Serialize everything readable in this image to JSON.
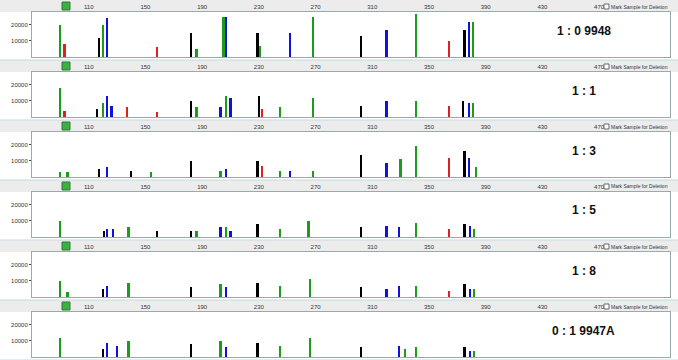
{
  "chart_data": [
    {
      "type": "bar",
      "title": "1 : 0 9948",
      "checkbox_label": "Mark Sample for Deletion",
      "xlim": [
        70,
        520
      ],
      "xticks": [
        110,
        150,
        190,
        230,
        270,
        310,
        350,
        390,
        430,
        470
      ],
      "ylim": [
        0,
        28000
      ],
      "yticks": [
        10000,
        20000
      ],
      "grid": false,
      "series": [
        {
          "color": "#1a9e1a",
          "x": [
            90,
            120,
            186,
            205,
            231,
            268,
            341,
            381
          ],
          "values": [
            20000,
            20000,
            5000,
            25000,
            7000,
            25000,
            27000,
            22000
          ]
        },
        {
          "color": "#1010e0",
          "x": [
            123,
            207,
            252,
            320,
            378
          ],
          "values": [
            24000,
            25000,
            15000,
            17000,
            22000
          ]
        },
        {
          "color": "#000000",
          "x": [
            117,
            182,
            229,
            302,
            375
          ],
          "values": [
            12000,
            15000,
            15000,
            13000,
            17000
          ]
        },
        {
          "color": "#e02020",
          "x": [
            93,
            158,
            364
          ],
          "values": [
            8000,
            6000,
            10000
          ]
        }
      ]
    },
    {
      "type": "bar",
      "title": "1 : 1",
      "checkbox_label": "Mark Sample for Deletion",
      "xlim": [
        70,
        520
      ],
      "xticks": [
        110,
        150,
        190,
        230,
        270,
        310,
        350,
        390,
        430,
        470
      ],
      "ylim": [
        0,
        28000
      ],
      "yticks": [
        10000,
        20000
      ],
      "grid": false,
      "series": [
        {
          "color": "#1a9e1a",
          "x": [
            90,
            120,
            186,
            207,
            245,
            268,
            341,
            381
          ],
          "values": [
            18000,
            9000,
            6000,
            13000,
            6000,
            12000,
            10000,
            9000
          ]
        },
        {
          "color": "#1010e0",
          "x": [
            123,
            126,
            203,
            210,
            320,
            378
          ],
          "values": [
            13000,
            7000,
            6000,
            12000,
            10000,
            9000
          ]
        },
        {
          "color": "#000000",
          "x": [
            116,
            182,
            230,
            302,
            374
          ],
          "values": [
            5000,
            10000,
            13000,
            7000,
            10000
          ]
        },
        {
          "color": "#e02020",
          "x": [
            93,
            137,
            158,
            232,
            364
          ],
          "values": [
            4000,
            6000,
            3000,
            5000,
            7000
          ]
        }
      ]
    },
    {
      "type": "bar",
      "title": "1 : 3",
      "checkbox_label": "Mark Sample for Deletion",
      "xlim": [
        70,
        520
      ],
      "xticks": [
        110,
        150,
        190,
        230,
        270,
        310,
        350,
        390,
        430,
        470
      ],
      "ylim": [
        0,
        28000
      ],
      "yticks": [
        10000,
        20000
      ],
      "grid": false,
      "series": [
        {
          "color": "#1a9e1a",
          "x": [
            90,
            95,
            154,
            203,
            245,
            268,
            330,
            341,
            383
          ],
          "values": [
            3000,
            3000,
            3000,
            4000,
            4000,
            4000,
            11000,
            19000,
            6000
          ]
        },
        {
          "color": "#1010e0",
          "x": [
            123,
            207,
            252,
            320,
            378
          ],
          "values": [
            6000,
            5000,
            4000,
            9000,
            12000
          ]
        },
        {
          "color": "#000000",
          "x": [
            117,
            140,
            182,
            229,
            302,
            375
          ],
          "values": [
            5000,
            4000,
            10000,
            10000,
            14000,
            16000
          ]
        },
        {
          "color": "#e02020",
          "x": [
            232,
            364
          ],
          "values": [
            7000,
            12000
          ]
        }
      ]
    },
    {
      "type": "bar",
      "title": "1 : 5",
      "checkbox_label": "Mark Sample for Deletion",
      "xlim": [
        70,
        520
      ],
      "xticks": [
        110,
        150,
        190,
        230,
        270,
        310,
        350,
        390,
        430,
        470
      ],
      "ylim": [
        0,
        28000
      ],
      "yticks": [
        10000,
        20000
      ],
      "grid": false,
      "series": [
        {
          "color": "#1a9e1a",
          "x": [
            90,
            138,
            186,
            207,
            245,
            265,
            341,
            382
          ],
          "values": [
            10000,
            6000,
            4000,
            6000,
            5000,
            10000,
            9000,
            5000
          ]
        },
        {
          "color": "#1010e0",
          "x": [
            123,
            127,
            203,
            210,
            320,
            329,
            379
          ],
          "values": [
            5000,
            5000,
            6000,
            4000,
            7000,
            6000,
            7000
          ]
        },
        {
          "color": "#000000",
          "x": [
            121,
            158,
            182,
            229,
            302,
            375
          ],
          "values": [
            4000,
            4000,
            4000,
            8000,
            6000,
            8000
          ]
        },
        {
          "color": "#e02020",
          "x": [
            364
          ],
          "values": [
            5000
          ]
        }
      ]
    },
    {
      "type": "bar",
      "title": "1 : 8",
      "checkbox_label": "Mark Sample for Deletion",
      "xlim": [
        70,
        520
      ],
      "xticks": [
        110,
        150,
        190,
        230,
        270,
        310,
        350,
        390,
        430,
        470
      ],
      "ylim": [
        0,
        28000
      ],
      "yticks": [
        10000,
        20000
      ],
      "grid": false,
      "series": [
        {
          "color": "#1a9e1a",
          "x": [
            90,
            95,
            138,
            203,
            245,
            266,
            341,
            382
          ],
          "values": [
            10000,
            3000,
            9000,
            8000,
            7000,
            11000,
            7000,
            5000
          ]
        },
        {
          "color": "#1010e0",
          "x": [
            123,
            207,
            320,
            329,
            379
          ],
          "values": [
            7000,
            6000,
            5000,
            7000,
            5000
          ]
        },
        {
          "color": "#000000",
          "x": [
            120,
            182,
            229,
            302,
            375
          ],
          "values": [
            5000,
            6000,
            9000,
            6000,
            8000
          ]
        },
        {
          "color": "#e02020",
          "x": [
            364
          ],
          "values": [
            4000
          ]
        }
      ]
    },
    {
      "type": "bar",
      "title": "0 : 1 9947A",
      "checkbox_label": "Mark Sample for Deletion",
      "xlim": [
        70,
        520
      ],
      "xticks": [
        110,
        150,
        190,
        230,
        270,
        310,
        350,
        390,
        430,
        470
      ],
      "ylim": [
        0,
        28000
      ],
      "yticks": [
        10000,
        20000
      ],
      "grid": false,
      "series": [
        {
          "color": "#1a9e1a",
          "x": [
            90,
            138,
            203,
            245,
            266,
            333,
            341,
            382
          ],
          "values": [
            12000,
            10000,
            10000,
            7000,
            12000,
            5000,
            6000,
            4000
          ]
        },
        {
          "color": "#1010e0",
          "x": [
            123,
            130,
            207,
            329,
            379
          ],
          "values": [
            9000,
            7000,
            6000,
            7000,
            4000
          ]
        },
        {
          "color": "#000000",
          "x": [
            120,
            182,
            229,
            302,
            375
          ],
          "values": [
            5000,
            8000,
            9000,
            6000,
            6000
          ]
        }
      ]
    }
  ]
}
